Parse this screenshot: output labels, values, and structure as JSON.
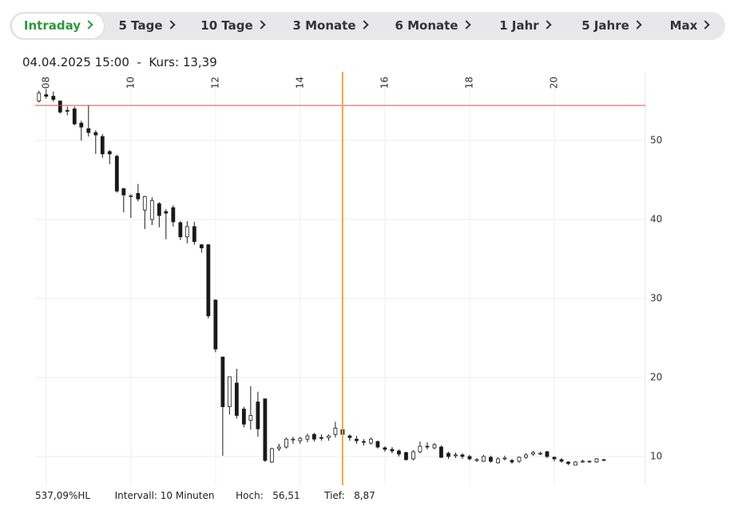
{
  "tabs": [
    "Intraday",
    "5 Tage",
    "10 Tage",
    "3 Monate",
    "6 Monate",
    "1 Jahr",
    "5 Jahre",
    "Max"
  ],
  "active_tab": "Intraday",
  "header": {
    "datetime": "04.04.2025 15:00",
    "separator": "-",
    "kurs_label": "Kurs:",
    "kurs_value": "13,39"
  },
  "footer": {
    "range": "537,09%HL",
    "interval": "Intervall: 10 Minuten",
    "high_label": "Hoch:",
    "high_value": "56,51",
    "low_label": "Tief:",
    "low_value": "8,87"
  },
  "chart_data": {
    "type": "candlestick",
    "x": [
      7.83,
      8,
      8.17,
      8.33,
      8.5,
      8.67,
      8.83,
      9,
      9.17,
      9.33,
      9.5,
      9.67,
      9.83,
      10,
      10.17,
      10.33,
      10.5,
      10.67,
      10.83,
      11,
      11.17,
      11.33,
      11.5,
      11.67,
      11.83,
      12,
      12.17,
      12.33,
      12.5,
      12.67,
      12.83,
      13,
      13.17,
      13.33,
      13.5,
      13.67,
      13.83,
      14,
      14.17,
      14.33,
      14.5,
      14.67,
      14.83,
      15,
      15.17,
      15.33,
      15.5,
      15.67,
      15.83,
      16,
      16.17,
      16.33,
      16.5,
      16.67,
      16.83,
      17,
      17.17,
      17.33,
      17.5,
      17.67,
      17.83,
      18,
      18.17,
      18.33,
      18.5,
      18.67,
      18.83,
      19,
      19.17,
      19.33,
      19.5,
      19.67,
      19.83,
      20,
      20.17,
      20.33,
      20.5,
      20.67,
      20.83,
      21,
      21.17
    ],
    "open": [
      55.0,
      55.8,
      55.6,
      55.0,
      53.8,
      54.0,
      52.2,
      51.5,
      51.0,
      50.5,
      48.6,
      48.0,
      43.9,
      43.0,
      43.3,
      41.2,
      40.0,
      42.0,
      41.0,
      41.5,
      39.6,
      37.8,
      39.1,
      36.8,
      36.8,
      29.8,
      22.6,
      16.3,
      19.3,
      16.0,
      14.6,
      16.9,
      17.3,
      9.3,
      11.0,
      11.2,
      12.1,
      12.0,
      12.2,
      12.8,
      12.4,
      12.4,
      12.8,
      13.4,
      12.6,
      12.2,
      11.9,
      11.7,
      11.9,
      11.1,
      10.9,
      10.7,
      10.5,
      9.7,
      10.6,
      11.3,
      11.1,
      11.2,
      10.4,
      10.1,
      10.2,
      10.0,
      9.6,
      9.4,
      9.9,
      9.2,
      9.7,
      9.5,
      9.4,
      9.9,
      10.3,
      10.4,
      10.6,
      9.9,
      9.6,
      9.3,
      8.9,
      9.3,
      9.3,
      9.3,
      9.5
    ],
    "high": [
      56.3,
      56.5,
      56.2,
      55.0,
      54.3,
      54.3,
      52.5,
      54.5,
      51.3,
      50.8,
      48.8,
      48.2,
      44.0,
      43.2,
      44.5,
      43.0,
      42.8,
      42.2,
      41.3,
      41.8,
      39.8,
      39.8,
      39.7,
      36.9,
      36.9,
      29.9,
      22.6,
      20.1,
      21.1,
      16.3,
      18.9,
      18.2,
      17.3,
      11.1,
      11.6,
      12.4,
      12.5,
      12.5,
      12.9,
      13.0,
      12.8,
      12.8,
      14.4,
      13.6,
      12.8,
      12.6,
      12.2,
      12.4,
      12.0,
      11.3,
      11.2,
      10.9,
      10.6,
      10.8,
      11.9,
      11.8,
      11.7,
      11.4,
      10.6,
      10.5,
      10.4,
      10.2,
      9.8,
      10.2,
      10.1,
      9.9,
      10.1,
      9.7,
      10.0,
      10.4,
      10.7,
      10.6,
      10.7,
      10.0,
      9.8,
      9.4,
      9.4,
      9.6,
      9.5,
      9.8,
      9.7
    ],
    "low": [
      54.8,
      55.3,
      54.9,
      53.4,
      53.2,
      51.9,
      50.0,
      50.5,
      48.3,
      47.8,
      47.0,
      43.4,
      40.9,
      40.2,
      42.3,
      38.8,
      39.3,
      39.0,
      37.5,
      39.1,
      37.4,
      37.0,
      36.8,
      35.8,
      27.5,
      23.2,
      10.1,
      15.3,
      14.8,
      13.7,
      13.4,
      12.5,
      9.3,
      9.2,
      10.7,
      11.0,
      11.6,
      11.6,
      11.8,
      11.9,
      12.0,
      12.0,
      12.4,
      12.6,
      12.0,
      11.6,
      11.4,
      11.5,
      11.0,
      10.6,
      10.4,
      10.0,
      9.5,
      9.5,
      10.4,
      10.9,
      10.9,
      9.8,
      9.7,
      9.8,
      9.7,
      9.5,
      9.3,
      9.3,
      9.2,
      9.1,
      9.5,
      9.1,
      9.2,
      9.7,
      10.1,
      10.2,
      9.8,
      9.4,
      9.2,
      8.9,
      8.87,
      9.2,
      9.2,
      9.2,
      9.4
    ],
    "close": [
      56.0,
      55.6,
      55.2,
      53.6,
      53.7,
      52.1,
      51.7,
      51.0,
      50.7,
      48.3,
      48.3,
      43.6,
      43.1,
      43.0,
      42.6,
      42.9,
      42.4,
      40.5,
      40.8,
      39.7,
      37.8,
      39.1,
      37.2,
      36.4,
      27.8,
      23.6,
      16.3,
      20.1,
      15.2,
      14.1,
      15.2,
      13.5,
      9.5,
      11.0,
      11.2,
      12.2,
      12.2,
      12.3,
      12.6,
      12.2,
      12.3,
      12.6,
      13.6,
      12.8,
      12.4,
      12.0,
      11.8,
      12.2,
      11.2,
      10.9,
      10.7,
      10.3,
      9.6,
      10.6,
      11.3,
      11.2,
      11.5,
      9.9,
      10.0,
      10.2,
      10.0,
      9.7,
      9.6,
      10.0,
      9.4,
      9.7,
      9.8,
      9.3,
      9.9,
      10.2,
      10.5,
      10.4,
      10.0,
      9.7,
      9.4,
      9.1,
      9.3,
      9.4,
      9.4,
      9.7,
      9.6
    ],
    "up_color": "#ffffff",
    "down_color": "#1a1a1a",
    "wick_color": "#1a1a1a",
    "xlim": [
      7.74,
      22.15
    ],
    "ylim": [
      6.36,
      58.69
    ],
    "xticks": [
      {
        "value": 8,
        "label": "08"
      },
      10,
      12,
      14,
      16,
      18,
      20
    ],
    "yticks": [
      10,
      20,
      30,
      40,
      50
    ],
    "grid": true,
    "reference_line": {
      "value": 54.44,
      "color": "#d9534f"
    },
    "crosshair": {
      "x": 15,
      "color": "#f2a93b"
    }
  }
}
